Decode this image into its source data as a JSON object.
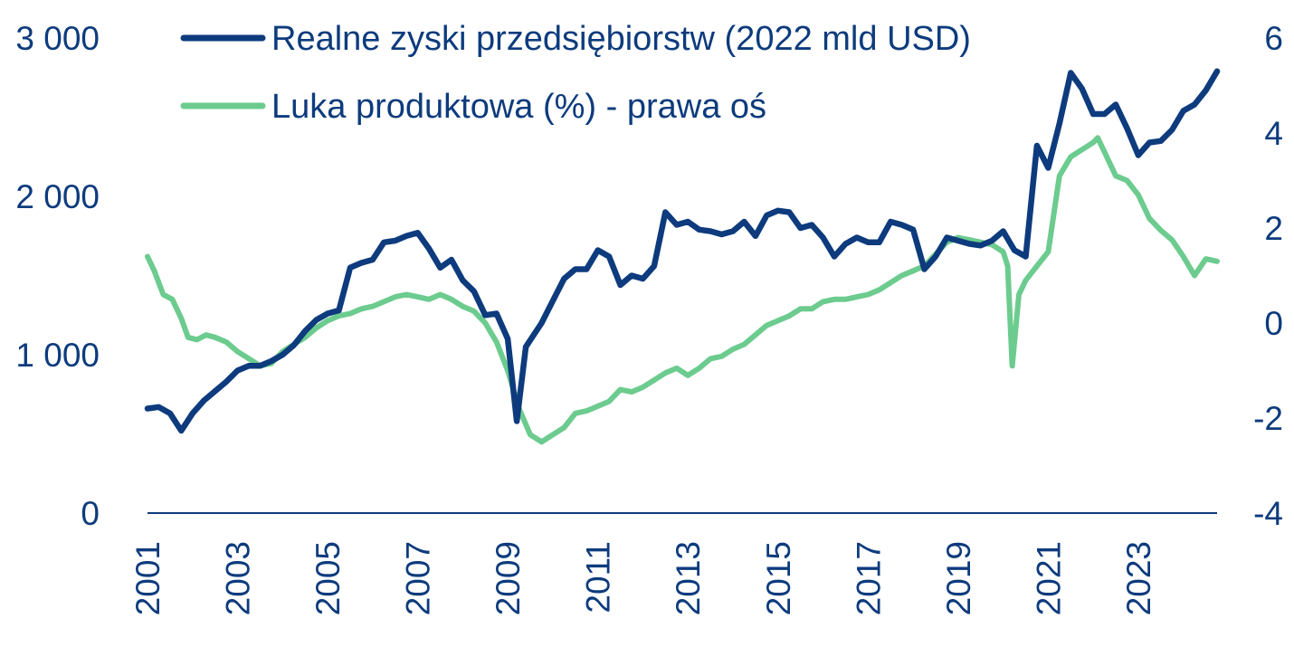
{
  "chart_data": {
    "type": "line",
    "title": "",
    "xlabel": "",
    "ylabel": "",
    "x_range": [
      2001.0,
      2024.75
    ],
    "x_ticks": [
      "2001",
      "2003",
      "2005",
      "2007",
      "2009",
      "2011",
      "2013",
      "2015",
      "2017",
      "2019",
      "2021",
      "2023"
    ],
    "y_left": {
      "range": [
        0,
        3000
      ],
      "ticks": [
        "0",
        "1 000",
        "2 000",
        "3 000"
      ]
    },
    "y_right": {
      "range": [
        -4,
        6
      ],
      "ticks": [
        "-4",
        "-2",
        "0",
        "2",
        "4",
        "6"
      ]
    },
    "grid": false,
    "legend_position": "top",
    "colors": {
      "profits": "#0d3b7d",
      "gap": "#6ccb8e",
      "axis_text": "#0d3b7d",
      "axis_line": "#0d3b7d"
    },
    "series": [
      {
        "name": "Realne zyski przedsiębiorstw (2022 mld USD)",
        "axis": "left",
        "color": "#0d3b7d",
        "points": [
          [
            2001.0,
            660
          ],
          [
            2001.25,
            670
          ],
          [
            2001.5,
            630
          ],
          [
            2001.75,
            520
          ],
          [
            2002.0,
            630
          ],
          [
            2002.25,
            710
          ],
          [
            2002.5,
            770
          ],
          [
            2002.75,
            830
          ],
          [
            2003.0,
            900
          ],
          [
            2003.25,
            930
          ],
          [
            2003.5,
            930
          ],
          [
            2003.75,
            960
          ],
          [
            2004.0,
            1000
          ],
          [
            2004.25,
            1060
          ],
          [
            2004.5,
            1150
          ],
          [
            2004.75,
            1220
          ],
          [
            2005.0,
            1260
          ],
          [
            2005.25,
            1280
          ],
          [
            2005.5,
            1550
          ],
          [
            2005.75,
            1580
          ],
          [
            2006.0,
            1600
          ],
          [
            2006.25,
            1710
          ],
          [
            2006.5,
            1720
          ],
          [
            2006.75,
            1750
          ],
          [
            2007.0,
            1770
          ],
          [
            2007.25,
            1670
          ],
          [
            2007.5,
            1550
          ],
          [
            2007.75,
            1600
          ],
          [
            2008.0,
            1470
          ],
          [
            2008.25,
            1400
          ],
          [
            2008.5,
            1250
          ],
          [
            2008.75,
            1260
          ],
          [
            2009.0,
            1100
          ],
          [
            2009.2,
            580
          ],
          [
            2009.4,
            1050
          ],
          [
            2009.75,
            1200
          ],
          [
            2010.0,
            1340
          ],
          [
            2010.25,
            1480
          ],
          [
            2010.5,
            1540
          ],
          [
            2010.75,
            1540
          ],
          [
            2011.0,
            1660
          ],
          [
            2011.25,
            1620
          ],
          [
            2011.5,
            1440
          ],
          [
            2011.75,
            1500
          ],
          [
            2012.0,
            1480
          ],
          [
            2012.25,
            1560
          ],
          [
            2012.5,
            1900
          ],
          [
            2012.75,
            1820
          ],
          [
            2013.0,
            1840
          ],
          [
            2013.25,
            1790
          ],
          [
            2013.5,
            1780
          ],
          [
            2013.75,
            1760
          ],
          [
            2014.0,
            1780
          ],
          [
            2014.25,
            1840
          ],
          [
            2014.5,
            1750
          ],
          [
            2014.75,
            1880
          ],
          [
            2015.0,
            1910
          ],
          [
            2015.25,
            1900
          ],
          [
            2015.5,
            1800
          ],
          [
            2015.75,
            1820
          ],
          [
            2016.0,
            1740
          ],
          [
            2016.25,
            1620
          ],
          [
            2016.5,
            1700
          ],
          [
            2016.75,
            1740
          ],
          [
            2017.0,
            1710
          ],
          [
            2017.25,
            1710
          ],
          [
            2017.5,
            1840
          ],
          [
            2017.75,
            1820
          ],
          [
            2018.0,
            1790
          ],
          [
            2018.25,
            1540
          ],
          [
            2018.5,
            1620
          ],
          [
            2018.75,
            1740
          ],
          [
            2019.0,
            1720
          ],
          [
            2019.25,
            1700
          ],
          [
            2019.5,
            1690
          ],
          [
            2019.75,
            1720
          ],
          [
            2020.0,
            1780
          ],
          [
            2020.25,
            1660
          ],
          [
            2020.5,
            1620
          ],
          [
            2020.75,
            2320
          ],
          [
            2021.0,
            2180
          ],
          [
            2021.25,
            2460
          ],
          [
            2021.5,
            2780
          ],
          [
            2021.75,
            2680
          ],
          [
            2022.0,
            2520
          ],
          [
            2022.25,
            2520
          ],
          [
            2022.5,
            2580
          ],
          [
            2022.75,
            2430
          ],
          [
            2023.0,
            2260
          ],
          [
            2023.25,
            2340
          ],
          [
            2023.5,
            2350
          ],
          [
            2023.75,
            2420
          ],
          [
            2024.0,
            2540
          ],
          [
            2024.25,
            2580
          ],
          [
            2024.5,
            2670
          ],
          [
            2024.75,
            2790
          ]
        ]
      },
      {
        "name": "Luka produktowa (%) - prawa oś",
        "axis": "right",
        "color": "#6ccb8e",
        "points": [
          [
            2001.0,
            1.4
          ],
          [
            2001.15,
            1.1
          ],
          [
            2001.35,
            0.6
          ],
          [
            2001.55,
            0.5
          ],
          [
            2001.75,
            0.1
          ],
          [
            2001.9,
            -0.3
          ],
          [
            2002.1,
            -0.35
          ],
          [
            2002.3,
            -0.25
          ],
          [
            2002.5,
            -0.3
          ],
          [
            2002.75,
            -0.4
          ],
          [
            2003.0,
            -0.6
          ],
          [
            2003.25,
            -0.75
          ],
          [
            2003.5,
            -0.9
          ],
          [
            2003.75,
            -0.85
          ],
          [
            2004.0,
            -0.6
          ],
          [
            2004.25,
            -0.45
          ],
          [
            2004.5,
            -0.3
          ],
          [
            2004.75,
            -0.1
          ],
          [
            2005.0,
            0.05
          ],
          [
            2005.25,
            0.15
          ],
          [
            2005.5,
            0.2
          ],
          [
            2005.75,
            0.3
          ],
          [
            2006.0,
            0.35
          ],
          [
            2006.25,
            0.45
          ],
          [
            2006.5,
            0.55
          ],
          [
            2006.75,
            0.6
          ],
          [
            2007.0,
            0.55
          ],
          [
            2007.25,
            0.5
          ],
          [
            2007.5,
            0.6
          ],
          [
            2007.75,
            0.5
          ],
          [
            2008.0,
            0.35
          ],
          [
            2008.25,
            0.25
          ],
          [
            2008.5,
            0.0
          ],
          [
            2008.75,
            -0.4
          ],
          [
            2009.0,
            -1.0
          ],
          [
            2009.25,
            -1.8
          ],
          [
            2009.5,
            -2.35
          ],
          [
            2009.75,
            -2.5
          ],
          [
            2010.0,
            -2.35
          ],
          [
            2010.25,
            -2.2
          ],
          [
            2010.5,
            -1.9
          ],
          [
            2010.75,
            -1.85
          ],
          [
            2011.0,
            -1.75
          ],
          [
            2011.25,
            -1.65
          ],
          [
            2011.5,
            -1.4
          ],
          [
            2011.75,
            -1.45
          ],
          [
            2012.0,
            -1.35
          ],
          [
            2012.25,
            -1.2
          ],
          [
            2012.5,
            -1.05
          ],
          [
            2012.75,
            -0.95
          ],
          [
            2013.0,
            -1.1
          ],
          [
            2013.25,
            -0.95
          ],
          [
            2013.5,
            -0.75
          ],
          [
            2013.75,
            -0.7
          ],
          [
            2014.0,
            -0.55
          ],
          [
            2014.25,
            -0.45
          ],
          [
            2014.5,
            -0.25
          ],
          [
            2014.75,
            -0.05
          ],
          [
            2015.0,
            0.05
          ],
          [
            2015.25,
            0.15
          ],
          [
            2015.5,
            0.3
          ],
          [
            2015.75,
            0.3
          ],
          [
            2016.0,
            0.45
          ],
          [
            2016.25,
            0.5
          ],
          [
            2016.5,
            0.5
          ],
          [
            2016.75,
            0.55
          ],
          [
            2017.0,
            0.6
          ],
          [
            2017.25,
            0.7
          ],
          [
            2017.5,
            0.85
          ],
          [
            2017.75,
            1.0
          ],
          [
            2018.0,
            1.1
          ],
          [
            2018.25,
            1.2
          ],
          [
            2018.5,
            1.45
          ],
          [
            2018.75,
            1.7
          ],
          [
            2019.0,
            1.8
          ],
          [
            2019.25,
            1.75
          ],
          [
            2019.5,
            1.7
          ],
          [
            2019.75,
            1.65
          ],
          [
            2020.0,
            1.5
          ],
          [
            2020.1,
            1.2
          ],
          [
            2020.2,
            -0.9
          ],
          [
            2020.35,
            0.6
          ],
          [
            2020.5,
            0.9
          ],
          [
            2020.75,
            1.2
          ],
          [
            2021.0,
            1.5
          ],
          [
            2021.25,
            3.1
          ],
          [
            2021.5,
            3.5
          ],
          [
            2021.75,
            3.65
          ],
          [
            2022.0,
            3.8
          ],
          [
            2022.1,
            3.9
          ],
          [
            2022.25,
            3.6
          ],
          [
            2022.5,
            3.1
          ],
          [
            2022.75,
            3.0
          ],
          [
            2023.0,
            2.7
          ],
          [
            2023.25,
            2.2
          ],
          [
            2023.5,
            1.95
          ],
          [
            2023.75,
            1.75
          ],
          [
            2024.0,
            1.4
          ],
          [
            2024.25,
            1.0
          ],
          [
            2024.5,
            1.35
          ],
          [
            2024.75,
            1.3
          ]
        ]
      }
    ]
  }
}
